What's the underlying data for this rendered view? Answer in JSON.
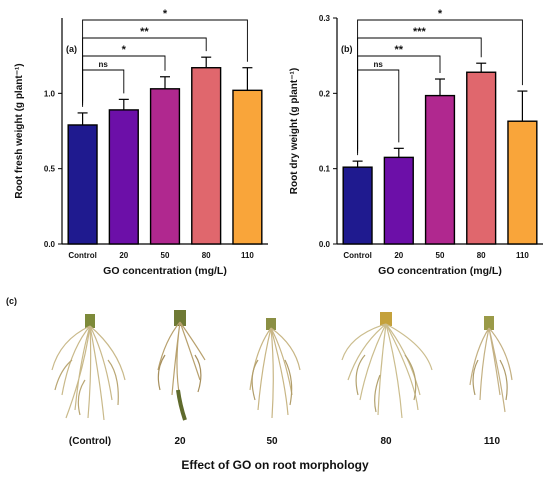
{
  "chart_data": [
    {
      "type": "bar",
      "panel_label": "(a)",
      "categories": [
        "Control",
        "20",
        "50",
        "80",
        "110"
      ],
      "values": [
        0.79,
        0.89,
        1.03,
        1.17,
        1.02
      ],
      "errors": [
        0.08,
        0.07,
        0.08,
        0.07,
        0.15
      ],
      "colors": [
        "#1f1a8f",
        "#6c0fa8",
        "#b0288f",
        "#e0676d",
        "#f9a53a"
      ],
      "xlabel": "GO concentration (mg/L)",
      "ylabel": "Root fresh weight (g plant⁻¹)",
      "ylim": [
        0,
        1.5
      ],
      "yticks": [
        0.0,
        0.5,
        1.0
      ],
      "ytick_labels": [
        "0.0",
        "0.5",
        "1.0"
      ],
      "grid": false,
      "significance": [
        {
          "compare": [
            "Control",
            "20"
          ],
          "label": "ns"
        },
        {
          "compare": [
            "Control",
            "50"
          ],
          "label": "*"
        },
        {
          "compare": [
            "Control",
            "80"
          ],
          "label": "**"
        },
        {
          "compare": [
            "Control",
            "110"
          ],
          "label": "*"
        }
      ]
    },
    {
      "type": "bar",
      "panel_label": "(b)",
      "categories": [
        "Control",
        "20",
        "50",
        "80",
        "110"
      ],
      "values": [
        0.102,
        0.115,
        0.197,
        0.228,
        0.163
      ],
      "errors": [
        0.008,
        0.012,
        0.022,
        0.012,
        0.04
      ],
      "colors": [
        "#1f1a8f",
        "#6c0fa8",
        "#b0288f",
        "#e0676d",
        "#f9a53a"
      ],
      "xlabel": "GO concentration (mg/L)",
      "ylabel": "Root dry weight (g plant⁻¹)",
      "ylim": [
        0,
        0.3
      ],
      "yticks": [
        0.0,
        0.1,
        0.2,
        0.3
      ],
      "ytick_labels": [
        "0.0",
        "0.1",
        "0.2",
        "0.3"
      ],
      "grid": false,
      "significance": [
        {
          "compare": [
            "Control",
            "20"
          ],
          "label": "ns"
        },
        {
          "compare": [
            "Control",
            "50"
          ],
          "label": "**"
        },
        {
          "compare": [
            "Control",
            "80"
          ],
          "label": "***"
        },
        {
          "compare": [
            "Control",
            "110"
          ],
          "label": "*"
        }
      ]
    }
  ],
  "panel_c": {
    "label": "(c)",
    "root_labels": [
      "(Control)",
      "20",
      "50",
      "80",
      "110"
    ],
    "caption": "Effect of GO on root morphology"
  }
}
